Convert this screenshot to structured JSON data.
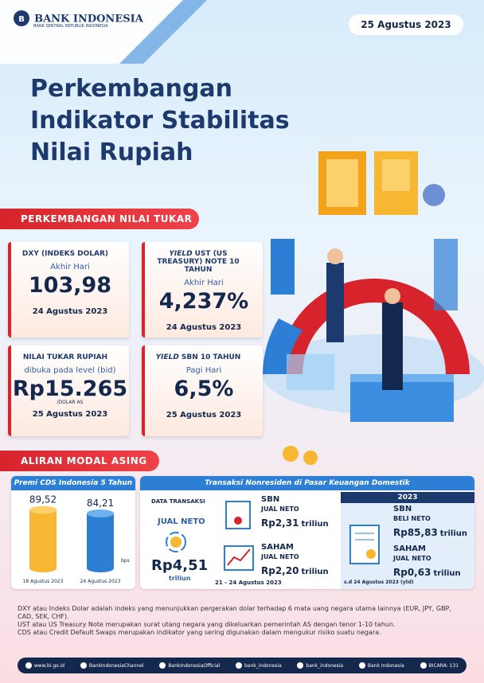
{
  "header": {
    "logo": "BANK INDONESIA",
    "logo_sub": "BANK SENTRAL REPUBLIK INDONESIA",
    "date": "25 Agustus 2023"
  },
  "title": [
    "Perkembangan",
    "Indikator Stabilitas",
    "Nilai Rupiah"
  ],
  "section1": {
    "heading": "PERKEMBANGAN NILAI TUKAR",
    "cards": [
      {
        "label": "DXY (INDEKS DOLAR)",
        "sublabel": "Akhir Hari",
        "value": "103,98",
        "date": "24 Agustus 2023"
      },
      {
        "label_em": "YIELD",
        "label": "UST (US TREASURY) NOTE 10 TAHUN",
        "sublabel": "Akhir Hari",
        "value": "4,237%",
        "date": "24 Agustus 2023"
      },
      {
        "label": "NILAI TUKAR RUPIAH",
        "sublabel": "dibuka pada level (bid)",
        "value": "Rp15.265",
        "unit": "/DOLAR AS",
        "date": "25 Agustus 2023"
      },
      {
        "label_em": "YIELD",
        "label": "SBN 10 TAHUN",
        "sublabel": "Pagi Hari",
        "value": "6,5%",
        "date": "25 Agustus 2023"
      }
    ]
  },
  "section2": {
    "heading": "ALIRAN MODAL ASING",
    "cds": {
      "title": "Premi CDS Indonesia 5 Tahun",
      "values": [
        89.52,
        84.21
      ],
      "value_labels": [
        "89,52",
        "84,21"
      ],
      "dates": [
        "18 Agustus 2023",
        "24 Agustus 2023"
      ],
      "unit": "bps"
    },
    "transactions": {
      "title": "Transaksi Nonresiden di Pasar Keuangan Domestik",
      "data_label": "DATA TRANSAKSI",
      "total": {
        "label": "JUAL NETO",
        "value": "Rp4,51",
        "unit": "triliun"
      },
      "items": [
        {
          "name": "SBN",
          "label": "JUAL NETO",
          "value": "Rp2,31",
          "unit": "triliun"
        },
        {
          "name": "SAHAM",
          "label": "JUAL NETO",
          "value": "Rp2,20",
          "unit": "triliun"
        }
      ],
      "period": "21 - 24 Agustus 2023"
    },
    "ytd": {
      "year": "2023",
      "items": [
        {
          "name": "SBN",
          "label": "BELI NETO",
          "value": "Rp85,83",
          "unit": "triliun"
        },
        {
          "name": "SAHAM",
          "label": "JUAL NETO",
          "value": "Rp0,63",
          "unit": "triliun"
        }
      ],
      "period": "s.d 24 Agustus 2023 (ytd)"
    }
  },
  "notes": [
    "DXY atau Indeks Dolar adalah indeks yang menunjukkan pergerakan dolar terhadap 6 mata uang negara utama lainnya (EUR, JPY, GBP, CAD, SEK, CHF).",
    "UST atau US Treasury Note merupakan surat utang negara yang dikeluarkan pemerintah AS dengan tenor 1-10 tahun.",
    "CDS atau Credit Default Swaps merupakan indikator yang sering digunakan dalam mengukur risiko suatu negara."
  ],
  "footer": [
    "www.bi.go.id",
    "BankIndonesiaChannel",
    "BankIndonesiaOfficial",
    "bank_indonesia",
    "bank_indonesia",
    "Bank Indonesia",
    "BICARA: 131"
  ]
}
